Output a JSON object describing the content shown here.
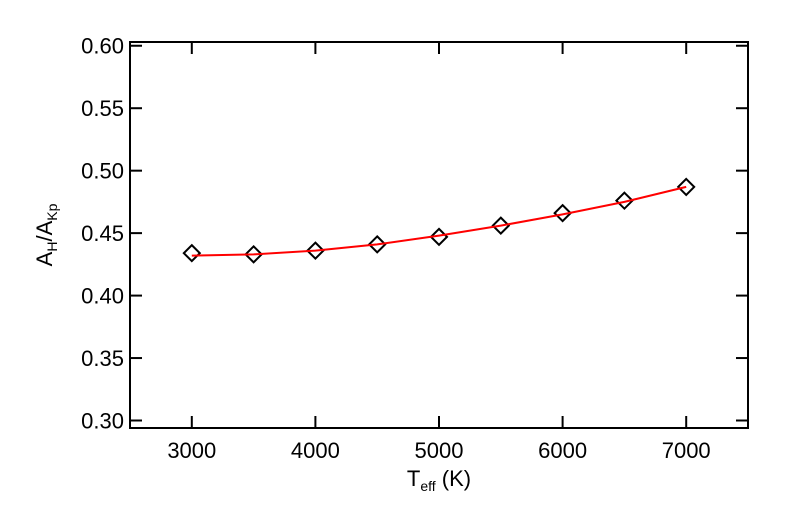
{
  "chart_data": {
    "type": "line",
    "x_label": [
      "T",
      "eff",
      " (K)"
    ],
    "y_label": [
      "A",
      "H",
      "/A",
      "Kp"
    ],
    "x": [
      3000,
      3500,
      4000,
      4500,
      5000,
      5500,
      6000,
      6500,
      7000
    ],
    "series": [
      {
        "color": "#000000",
        "marker": "diamond",
        "values": [
          0.434,
          0.433,
          0.436,
          0.441,
          0.447,
          0.456,
          0.466,
          0.476,
          0.487
        ]
      },
      {
        "color": "#ff0000",
        "marker": "none",
        "values": [
          0.432,
          0.433,
          0.436,
          0.441,
          0.448,
          0.456,
          0.465,
          0.475,
          0.487
        ]
      }
    ],
    "xlim": [
      2500,
      7500
    ],
    "ylim": [
      0.294,
      0.603
    ],
    "xticks": [
      3000,
      4000,
      5000,
      6000,
      7000
    ],
    "yticks": [
      {
        "value": 0.3,
        "label": "0.30"
      },
      {
        "value": 0.35,
        "label": "0.35"
      },
      {
        "value": 0.4,
        "label": "0.40"
      },
      {
        "value": 0.45,
        "label": "0.45"
      },
      {
        "value": 0.5,
        "label": "0.50"
      },
      {
        "value": 0.55,
        "label": "0.55"
      },
      {
        "value": 0.6,
        "label": "0.60"
      }
    ],
    "grid": false
  }
}
